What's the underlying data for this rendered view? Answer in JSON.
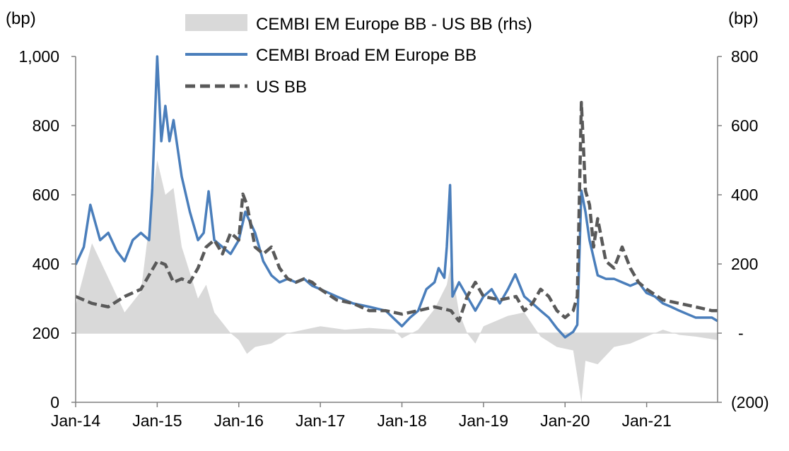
{
  "chart_data": {
    "type": "line",
    "left_axis": {
      "unit_label": "(bp)",
      "ylim": [
        0,
        1000
      ],
      "ticks": [
        0,
        200,
        400,
        600,
        800,
        1000
      ],
      "tick_labels": [
        "0",
        "200",
        "400",
        "600",
        "800",
        "1,000"
      ]
    },
    "right_axis": {
      "unit_label": "(bp)",
      "ylim": [
        -200,
        800
      ],
      "ticks": [
        -200,
        0,
        200,
        400,
        600,
        800
      ],
      "tick_labels": [
        "(200)",
        "-",
        "200",
        "400",
        "600",
        "800"
      ]
    },
    "x_axis": {
      "ticks": [
        2014,
        2015,
        2016,
        2017,
        2018,
        2019,
        2020,
        2021
      ],
      "tick_labels": [
        "Jan-14",
        "Jan-15",
        "Jan-16",
        "Jan-17",
        "Jan-18",
        "Jan-19",
        "Jan-20",
        "Jan-21"
      ],
      "xlim": [
        2014,
        2021.87
      ]
    },
    "legend_position": "top",
    "series": [
      {
        "name": "CEMBI EM Europe BB - US BB (rhs)",
        "kind": "area",
        "axis": "right",
        "color": "#d9d9d9",
        "x": [
          2014.0,
          2014.2,
          2014.4,
          2014.6,
          2014.8,
          2015.0,
          2015.1,
          2015.2,
          2015.3,
          2015.5,
          2015.6,
          2015.7,
          2015.9,
          2016.0,
          2016.1,
          2016.2,
          2016.4,
          2016.6,
          2016.8,
          2017.0,
          2017.3,
          2017.6,
          2017.9,
          2018.0,
          2018.2,
          2018.4,
          2018.55,
          2018.6,
          2018.7,
          2018.8,
          2018.9,
          2019.0,
          2019.3,
          2019.5,
          2019.7,
          2019.9,
          2020.1,
          2020.2,
          2020.25,
          2020.4,
          2020.6,
          2020.8,
          2021.0,
          2021.2,
          2021.4,
          2021.6,
          2021.87
        ],
        "values": [
          80,
          260,
          160,
          60,
          120,
          500,
          400,
          420,
          250,
          100,
          140,
          60,
          0,
          -20,
          -60,
          -40,
          -30,
          0,
          10,
          20,
          10,
          15,
          10,
          -15,
          10,
          70,
          140,
          200,
          60,
          0,
          -30,
          20,
          50,
          60,
          -10,
          -40,
          -50,
          -200,
          -80,
          -90,
          -40,
          -30,
          -10,
          10,
          -5,
          -10,
          -20
        ]
      },
      {
        "name": "CEMBI Broad EM Europe BB",
        "kind": "line",
        "axis": "left",
        "color": "#4a7ebb",
        "x": [
          2014.0,
          2014.1,
          2014.18,
          2014.3,
          2014.4,
          2014.5,
          2014.6,
          2014.7,
          2014.8,
          2014.9,
          2014.94,
          2015.0,
          2015.05,
          2015.1,
          2015.15,
          2015.2,
          2015.3,
          2015.4,
          2015.5,
          2015.57,
          2015.63,
          2015.7,
          2015.8,
          2015.9,
          2016.0,
          2016.08,
          2016.2,
          2016.3,
          2016.4,
          2016.5,
          2016.6,
          2016.7,
          2016.8,
          2016.9,
          2017.0,
          2017.2,
          2017.4,
          2017.6,
          2017.8,
          2018.0,
          2018.1,
          2018.2,
          2018.3,
          2018.4,
          2018.45,
          2018.52,
          2018.55,
          2018.59,
          2018.62,
          2018.7,
          2018.8,
          2018.9,
          2019.0,
          2019.1,
          2019.2,
          2019.3,
          2019.39,
          2019.5,
          2019.6,
          2019.7,
          2019.8,
          2019.9,
          2020.0,
          2020.1,
          2020.15,
          2020.2,
          2020.25,
          2020.3,
          2020.4,
          2020.5,
          2020.6,
          2020.7,
          2020.8,
          2020.9,
          2021.0,
          2021.1,
          2021.2,
          2021.3,
          2021.4,
          2021.5,
          2021.6,
          2021.7,
          2021.8,
          2021.87
        ],
        "values": [
          398,
          449,
          571,
          469,
          490,
          439,
          408,
          469,
          490,
          469,
          620,
          1000,
          755,
          857,
          755,
          816,
          653,
          551,
          469,
          490,
          610,
          469,
          449,
          429,
          469,
          551,
          490,
          408,
          367,
          347,
          357,
          347,
          357,
          337,
          327,
          306,
          286,
          276,
          265,
          220,
          245,
          265,
          327,
          347,
          388,
          360,
          449,
          628,
          306,
          347,
          306,
          265,
          306,
          327,
          286,
          327,
          370,
          306,
          286,
          265,
          245,
          214,
          188,
          204,
          224,
          612,
          551,
          469,
          367,
          357,
          357,
          347,
          337,
          347,
          316,
          306,
          286,
          276,
          265,
          255,
          245,
          245,
          245,
          235
        ]
      },
      {
        "name": "US BB",
        "kind": "dashed",
        "axis": "left",
        "color": "#595959",
        "x": [
          2014.0,
          2014.2,
          2014.4,
          2014.6,
          2014.8,
          2015.0,
          2015.1,
          2015.2,
          2015.3,
          2015.4,
          2015.5,
          2015.6,
          2015.7,
          2015.8,
          2015.9,
          2016.0,
          2016.05,
          2016.1,
          2016.2,
          2016.3,
          2016.4,
          2016.5,
          2016.6,
          2016.7,
          2016.8,
          2016.9,
          2017.0,
          2017.2,
          2017.4,
          2017.6,
          2017.8,
          2018.0,
          2018.2,
          2018.4,
          2018.6,
          2018.7,
          2018.8,
          2018.9,
          2019.0,
          2019.2,
          2019.4,
          2019.5,
          2019.6,
          2019.7,
          2019.8,
          2019.9,
          2020.0,
          2020.1,
          2020.15,
          2020.2,
          2020.25,
          2020.3,
          2020.35,
          2020.4,
          2020.5,
          2020.6,
          2020.7,
          2020.8,
          2020.9,
          2021.0,
          2021.2,
          2021.4,
          2021.6,
          2021.8,
          2021.87
        ],
        "values": [
          306,
          286,
          276,
          306,
          327,
          408,
          398,
          347,
          357,
          347,
          388,
          449,
          469,
          429,
          490,
          469,
          602,
          571,
          449,
          429,
          449,
          388,
          357,
          347,
          357,
          347,
          327,
          296,
          286,
          265,
          265,
          255,
          265,
          276,
          265,
          235,
          306,
          347,
          306,
          296,
          306,
          265,
          286,
          327,
          306,
          265,
          245,
          265,
          306,
          867,
          612,
          571,
          449,
          531,
          408,
          388,
          449,
          388,
          347,
          327,
          296,
          286,
          276,
          265,
          265
        ]
      }
    ]
  }
}
